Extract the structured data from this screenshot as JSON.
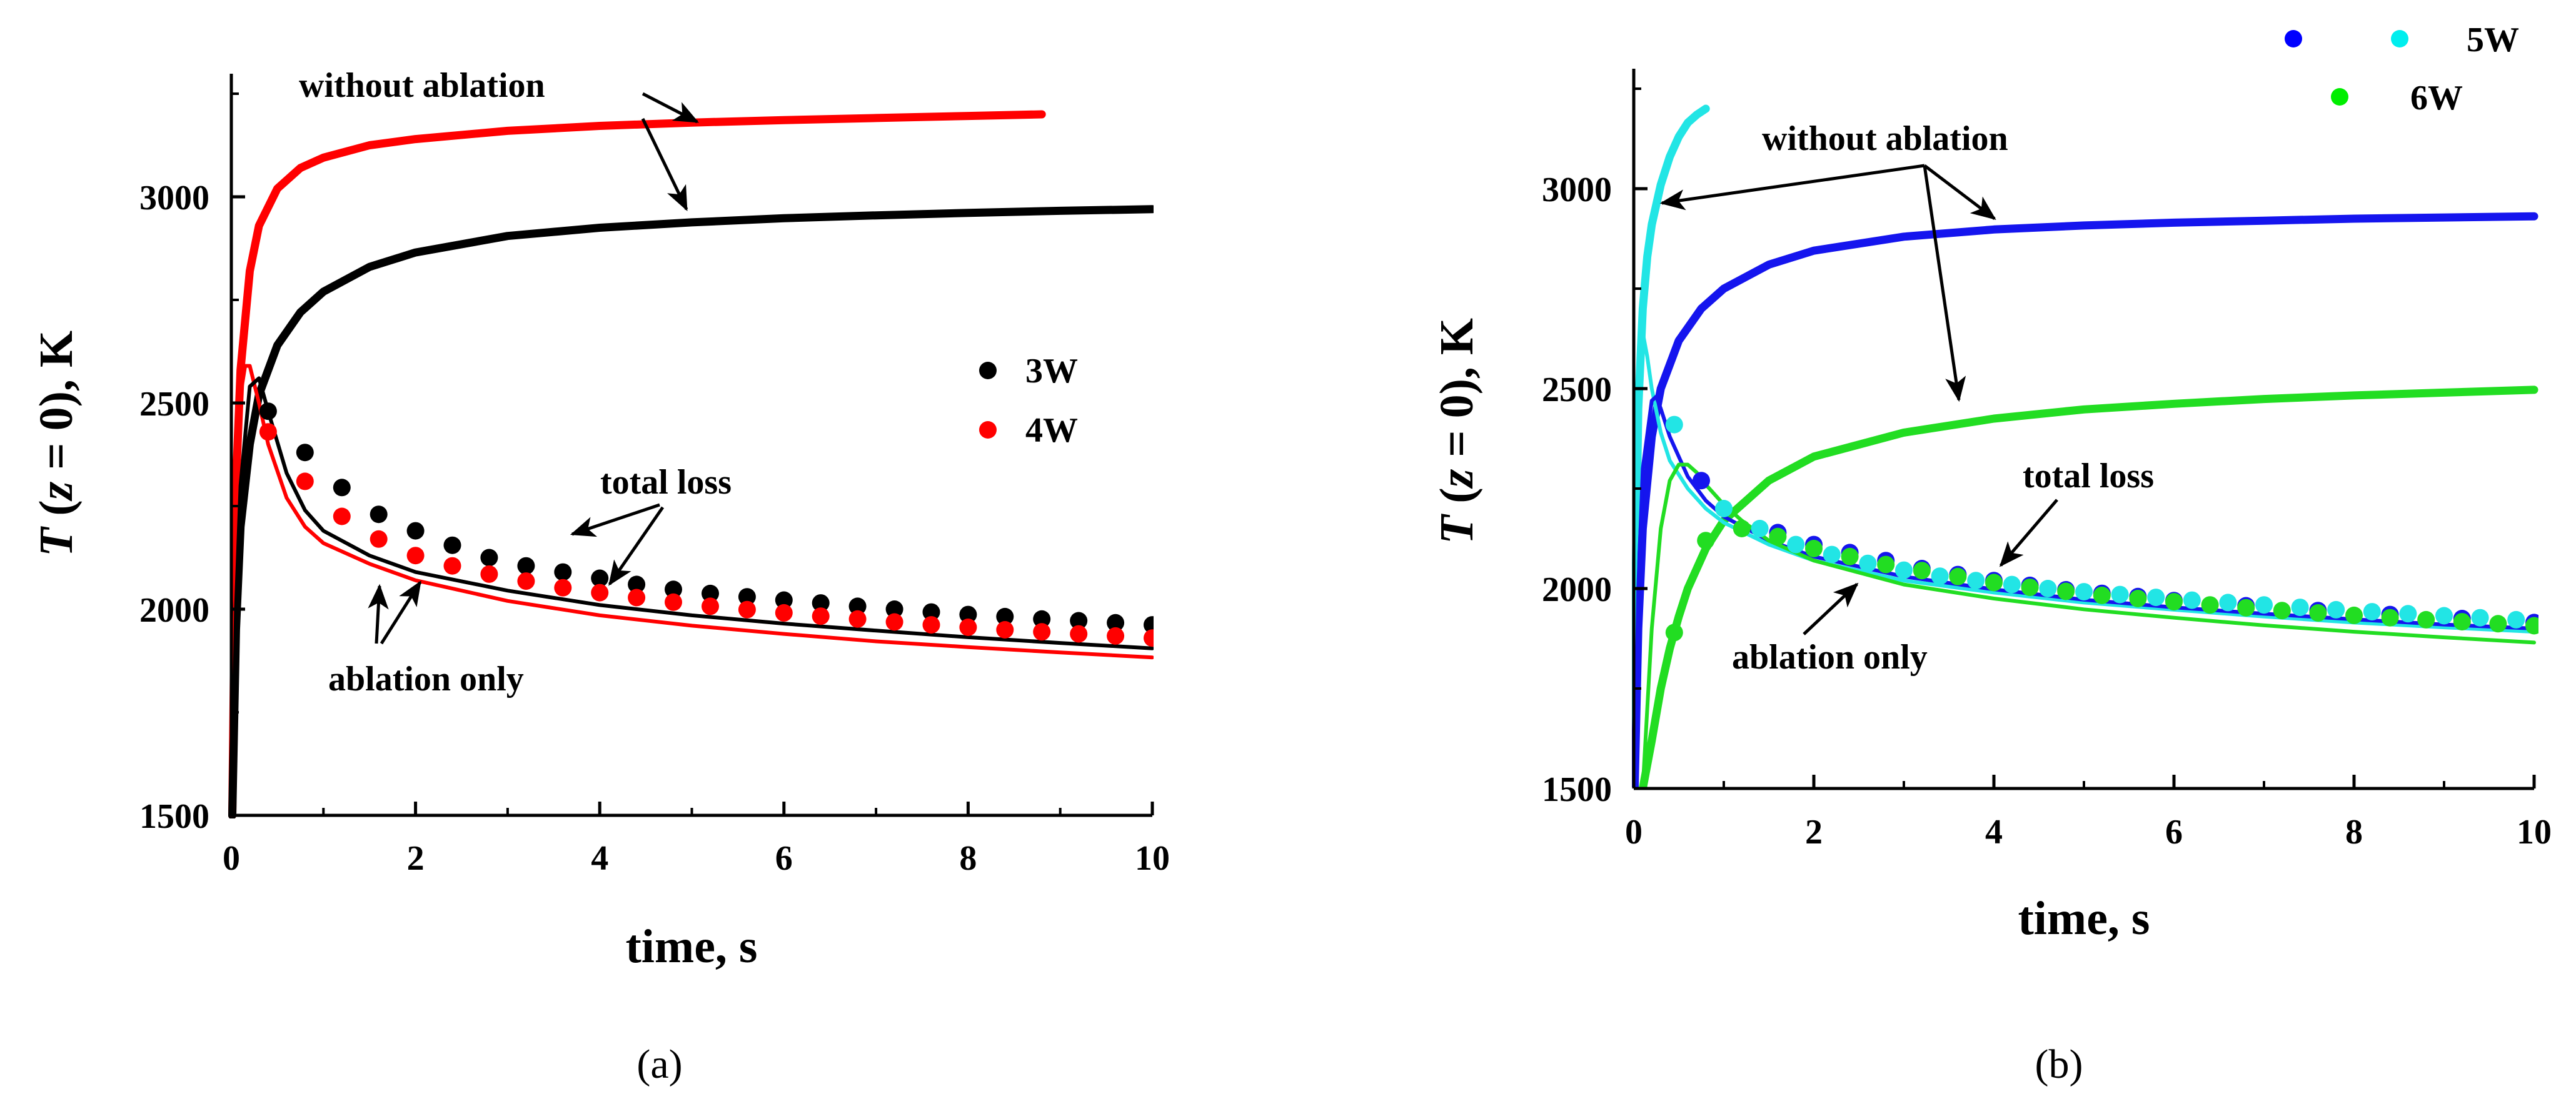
{
  "chart_data": [
    {
      "type": "line",
      "panel_label": "(a)",
      "xlabel": "time, s",
      "ylabel_var": "T",
      "ylabel_arg_open": " (",
      "ylabel_z": "z",
      "ylabel_arg_close": " = 0), K",
      "xlim": [
        0,
        10
      ],
      "ylim": [
        1500,
        3300
      ],
      "xticks": [
        "0",
        "2",
        "4",
        "6",
        "8",
        "10"
      ],
      "xtick_values": [
        0,
        2,
        4,
        6,
        8,
        10
      ],
      "yticks": [
        "1500",
        "2000",
        "2500",
        "3000"
      ],
      "ytick_values": [
        1500,
        2000,
        2500,
        3000
      ],
      "legend": [
        {
          "label": "3W",
          "color": "#000000"
        },
        {
          "label": "4W",
          "color": "#ff0000"
        }
      ],
      "series": [
        {
          "name": "4W without ablation",
          "kind": "line",
          "color": "#ff0000",
          "width": "thick",
          "x": [
            0.01,
            0.05,
            0.1,
            0.2,
            0.3,
            0.5,
            0.75,
            1.0,
            1.5,
            2.0,
            3.0,
            4.0,
            5.0,
            6.0,
            7.0,
            8.0,
            8.8
          ],
          "y": [
            1500,
            2300,
            2580,
            2820,
            2930,
            3020,
            3070,
            3095,
            3125,
            3140,
            3160,
            3172,
            3180,
            3186,
            3191,
            3196,
            3200
          ]
        },
        {
          "name": "3W without ablation",
          "kind": "line",
          "color": "#000000",
          "width": "thick",
          "x": [
            0.01,
            0.05,
            0.1,
            0.2,
            0.3,
            0.5,
            0.75,
            1.0,
            1.5,
            2.0,
            3.0,
            4.0,
            5.0,
            6.0,
            7.0,
            8.0,
            9.0,
            10.0
          ],
          "y": [
            1500,
            1950,
            2200,
            2400,
            2520,
            2640,
            2720,
            2770,
            2830,
            2865,
            2905,
            2925,
            2938,
            2948,
            2955,
            2961,
            2966,
            2970
          ]
        },
        {
          "name": "4W ablation only",
          "kind": "line",
          "color": "#ff0000",
          "width": "thin",
          "x": [
            0.01,
            0.05,
            0.1,
            0.15,
            0.2,
            0.3,
            0.4,
            0.6,
            0.8,
            1.0,
            1.5,
            2.0,
            3.0,
            4.0,
            5.0,
            6.0,
            7.0,
            8.0,
            9.0,
            10.0
          ],
          "y": [
            1500,
            2200,
            2520,
            2590,
            2590,
            2500,
            2400,
            2270,
            2200,
            2160,
            2110,
            2070,
            2020,
            1985,
            1960,
            1940,
            1922,
            1908,
            1895,
            1883
          ]
        },
        {
          "name": "3W ablation only",
          "kind": "line",
          "color": "#000000",
          "width": "thin",
          "x": [
            0.01,
            0.05,
            0.1,
            0.2,
            0.3,
            0.4,
            0.6,
            0.8,
            1.0,
            1.5,
            2.0,
            3.0,
            4.0,
            5.0,
            6.0,
            7.0,
            8.0,
            9.0,
            10.0
          ],
          "y": [
            1500,
            2000,
            2300,
            2540,
            2560,
            2480,
            2330,
            2240,
            2190,
            2130,
            2090,
            2045,
            2010,
            1985,
            1965,
            1948,
            1932,
            1918,
            1905
          ]
        },
        {
          "name": "3W total loss",
          "kind": "points",
          "color": "#000000",
          "x": [
            0.4,
            0.8,
            1.2,
            1.6,
            2.0,
            2.4,
            2.8,
            3.2,
            3.6,
            4.0,
            4.4,
            4.8,
            5.2,
            5.6,
            6.0,
            6.4,
            6.8,
            7.2,
            7.6,
            8.0,
            8.4,
            8.8,
            9.2,
            9.6,
            10.0
          ],
          "y": [
            2480,
            2380,
            2295,
            2230,
            2190,
            2155,
            2125,
            2105,
            2090,
            2075,
            2060,
            2048,
            2038,
            2030,
            2022,
            2015,
            2007,
            2000,
            1993,
            1987,
            1982,
            1976,
            1972,
            1967,
            1962
          ]
        },
        {
          "name": "4W total loss",
          "kind": "points",
          "color": "#ff0000",
          "x": [
            0.4,
            0.8,
            1.2,
            1.6,
            2.0,
            2.4,
            2.8,
            3.2,
            3.6,
            4.0,
            4.4,
            4.8,
            5.2,
            5.6,
            6.0,
            6.4,
            6.8,
            7.2,
            7.6,
            8.0,
            8.4,
            8.8,
            9.2,
            9.6,
            10.0
          ],
          "y": [
            2430,
            2310,
            2225,
            2170,
            2130,
            2105,
            2085,
            2068,
            2052,
            2040,
            2028,
            2017,
            2007,
            1999,
            1991,
            1983,
            1976,
            1969,
            1962,
            1956,
            1950,
            1945,
            1940,
            1935,
            1930
          ]
        }
      ],
      "annotations": {
        "without_ablation": "without ablation",
        "total_loss": "total loss",
        "ablation_only": "ablation only"
      }
    },
    {
      "type": "line",
      "panel_label": "(b)",
      "xlabel": "time, s",
      "ylabel_var": "T",
      "ylabel_arg_open": " (",
      "ylabel_z": "z",
      "ylabel_arg_close": " = 0), K",
      "xlim": [
        0,
        10
      ],
      "ylim": [
        1500,
        3300
      ],
      "xticks": [
        "0",
        "2",
        "4",
        "6",
        "8",
        "10"
      ],
      "xtick_values": [
        0,
        2,
        4,
        6,
        8,
        10
      ],
      "yticks": [
        "1500",
        "2000",
        "2500",
        "3000"
      ],
      "ytick_values": [
        1500,
        2000,
        2500,
        3000
      ],
      "legend": [
        {
          "label": "5W",
          "colors": [
            "#0000ff",
            "#00eeee"
          ]
        },
        {
          "label": "6W",
          "colors": [
            "#00ee00"
          ]
        }
      ],
      "series": [
        {
          "name": "5W (cyan) without ablation",
          "kind": "line",
          "color": "#22e5e5",
          "width": "thick",
          "x": [
            0.005,
            0.02,
            0.05,
            0.1,
            0.15,
            0.2,
            0.3,
            0.4,
            0.5,
            0.6,
            0.7,
            0.8
          ],
          "y": [
            1500,
            2000,
            2450,
            2700,
            2830,
            2910,
            3010,
            3080,
            3130,
            3165,
            3185,
            3200
          ]
        },
        {
          "name": "5W (blue) without ablation",
          "kind": "line",
          "color": "#1515ee",
          "width": "thick",
          "x": [
            0.01,
            0.05,
            0.1,
            0.2,
            0.3,
            0.5,
            0.75,
            1.0,
            1.5,
            2.0,
            3.0,
            4.0,
            5.0,
            6.0,
            7.0,
            8.0,
            9.0,
            10.0
          ],
          "y": [
            1500,
            1900,
            2150,
            2380,
            2500,
            2620,
            2700,
            2750,
            2810,
            2845,
            2880,
            2898,
            2908,
            2915,
            2920,
            2925,
            2928,
            2931
          ]
        },
        {
          "name": "6W without ablation",
          "kind": "line",
          "color": "#22dd22",
          "width": "thick",
          "x": [
            0.1,
            0.2,
            0.3,
            0.4,
            0.5,
            0.6,
            0.8,
            1.0,
            1.5,
            2.0,
            3.0,
            4.0,
            5.0,
            6.0,
            7.0,
            8.0,
            9.0,
            10.0
          ],
          "y": [
            1500,
            1620,
            1750,
            1850,
            1930,
            2000,
            2100,
            2170,
            2270,
            2330,
            2390,
            2425,
            2448,
            2462,
            2474,
            2483,
            2490,
            2497
          ]
        },
        {
          "name": "5W (cyan) ablation only",
          "kind": "line",
          "color": "#22e5e5",
          "width": "thin",
          "x": [
            0.005,
            0.02,
            0.05,
            0.08,
            0.1,
            0.15,
            0.2,
            0.3,
            0.4,
            0.6,
            0.8,
            1.0,
            1.5,
            2.0,
            3.0,
            4.0,
            5.0,
            6.0,
            7.0,
            8.0,
            9.0,
            10.0
          ],
          "y": [
            1500,
            2100,
            2500,
            2620,
            2640,
            2580,
            2500,
            2390,
            2320,
            2250,
            2200,
            2165,
            2110,
            2070,
            2020,
            1990,
            1965,
            1947,
            1930,
            1915,
            1903,
            1892
          ]
        },
        {
          "name": "5W (blue) ablation only",
          "kind": "line",
          "color": "#1515ee",
          "width": "thin",
          "x": [
            0.01,
            0.05,
            0.1,
            0.2,
            0.25,
            0.3,
            0.4,
            0.6,
            0.8,
            1.0,
            1.5,
            2.0,
            3.0,
            4.0,
            5.0,
            6.0,
            7.0,
            8.0,
            9.0,
            10.0
          ],
          "y": [
            1500,
            2000,
            2300,
            2470,
            2480,
            2450,
            2380,
            2280,
            2220,
            2180,
            2120,
            2080,
            2030,
            1998,
            1972,
            1953,
            1937,
            1923,
            1910,
            1900
          ]
        },
        {
          "name": "6W ablation only",
          "kind": "line",
          "color": "#22dd22",
          "width": "thin",
          "x": [
            0.1,
            0.2,
            0.3,
            0.4,
            0.5,
            0.6,
            0.7,
            0.8,
            1.0,
            1.2,
            1.5,
            2.0,
            3.0,
            4.0,
            5.0,
            6.0,
            7.0,
            8.0,
            9.0,
            10.0
          ],
          "y": [
            1500,
            1900,
            2150,
            2270,
            2310,
            2310,
            2290,
            2260,
            2210,
            2170,
            2120,
            2070,
            2010,
            1975,
            1948,
            1927,
            1908,
            1892,
            1878,
            1865
          ]
        },
        {
          "name": "5W (blue) total loss",
          "kind": "points",
          "color": "#1515ee",
          "x": [
            0.75,
            1.6,
            2.0,
            2.4,
            2.8,
            3.2,
            3.6,
            4.0,
            4.4,
            4.8,
            5.2,
            5.6,
            6.0,
            6.8,
            7.6,
            8.4,
            9.2,
            10.0
          ],
          "y": [
            2270,
            2140,
            2110,
            2090,
            2070,
            2050,
            2035,
            2020,
            2008,
            1997,
            1988,
            1980,
            1970,
            1957,
            1945,
            1935,
            1925,
            1915
          ]
        },
        {
          "name": "5W (cyan) total loss",
          "kind": "points",
          "color": "#22e5e5",
          "x": [
            0.45,
            1.0,
            1.4,
            1.8,
            2.2,
            2.6,
            3.0,
            3.4,
            3.8,
            4.2,
            4.6,
            5.0,
            5.4,
            5.8,
            6.2,
            6.6,
            7.0,
            7.4,
            7.8,
            8.2,
            8.6,
            9.0,
            9.4,
            9.8
          ],
          "y": [
            2410,
            2200,
            2150,
            2110,
            2085,
            2063,
            2046,
            2031,
            2020,
            2010,
            2000,
            1992,
            1985,
            1978,
            1971,
            1965,
            1959,
            1953,
            1947,
            1942,
            1937,
            1932,
            1927,
            1922
          ]
        },
        {
          "name": "6W total loss",
          "kind": "points",
          "color": "#22dd22",
          "x": [
            0.45,
            0.8,
            1.2,
            1.6,
            2.0,
            2.4,
            2.8,
            3.2,
            3.6,
            4.0,
            4.4,
            4.8,
            5.2,
            5.6,
            6.0,
            6.4,
            6.8,
            7.2,
            7.6,
            8.0,
            8.4,
            8.8,
            9.2,
            9.6,
            10.0
          ],
          "y": [
            1890,
            2120,
            2150,
            2130,
            2100,
            2080,
            2060,
            2045,
            2030,
            2015,
            2003,
            1993,
            1983,
            1975,
            1967,
            1959,
            1952,
            1945,
            1939,
            1933,
            1927,
            1922,
            1917,
            1912,
            1907
          ]
        }
      ],
      "annotations": {
        "without_ablation": "without ablation",
        "total_loss": "total loss",
        "ablation_only": "ablation only"
      }
    }
  ]
}
